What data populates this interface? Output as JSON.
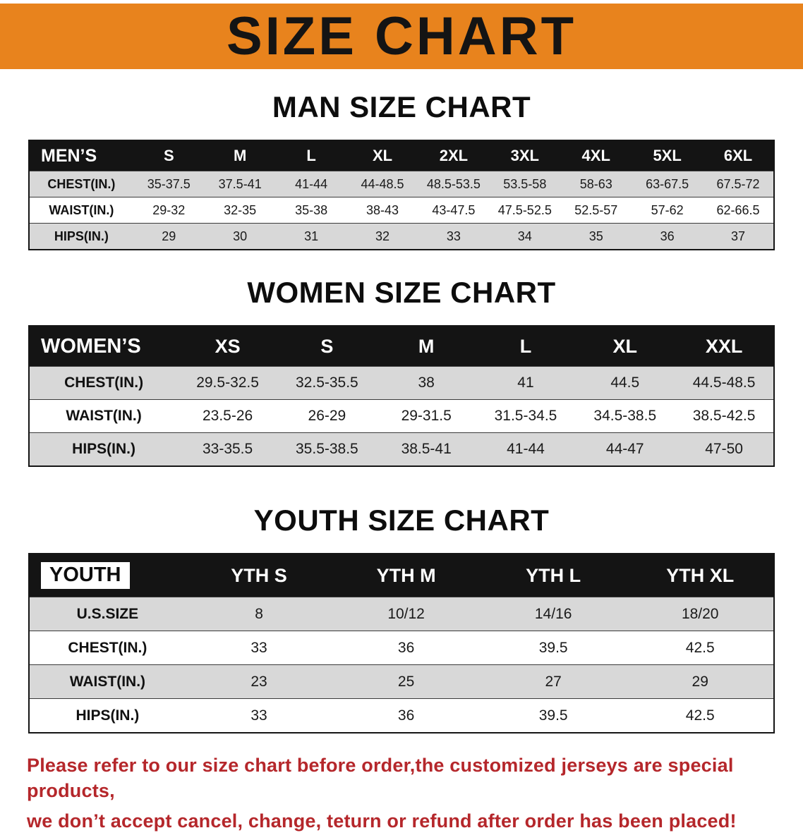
{
  "banner": {
    "title": "SIZE CHART"
  },
  "colors": {
    "banner_bg": "#e8831d",
    "table_header_bg": "#141414",
    "row_stripe": "#d8d8d8",
    "disclaimer_text": "#b5272b"
  },
  "sections": [
    {
      "heading": "MAN SIZE CHART",
      "table": {
        "header": [
          "MEN’S",
          "S",
          "M",
          "L",
          "XL",
          "2XL",
          "3XL",
          "4XL",
          "5XL",
          "6XL"
        ],
        "rows": [
          [
            "CHEST(IN.)",
            "35-37.5",
            "37.5-41",
            "41-44",
            "44-48.5",
            "48.5-53.5",
            "53.5-58",
            "58-63",
            "63-67.5",
            "67.5-72"
          ],
          [
            "WAIST(IN.)",
            "29-32",
            "32-35",
            "35-38",
            "38-43",
            "43-47.5",
            "47.5-52.5",
            "52.5-57",
            "57-62",
            "62-66.5"
          ],
          [
            "HIPS(IN.)",
            "29",
            "30",
            "31",
            "32",
            "33",
            "34",
            "35",
            "36",
            "37"
          ]
        ]
      }
    },
    {
      "heading": "WOMEN SIZE CHART",
      "table": {
        "header": [
          "WOMEN’S",
          "XS",
          "S",
          "M",
          "L",
          "XL",
          "XXL"
        ],
        "rows": [
          [
            "CHEST(IN.)",
            "29.5-32.5",
            "32.5-35.5",
            "38",
            "41",
            "44.5",
            "44.5-48.5"
          ],
          [
            "WAIST(IN.)",
            "23.5-26",
            "26-29",
            "29-31.5",
            "31.5-34.5",
            "34.5-38.5",
            "38.5-42.5"
          ],
          [
            "HIPS(IN.)",
            "33-35.5",
            "35.5-38.5",
            "38.5-41",
            "41-44",
            "44-47",
            "47-50"
          ]
        ]
      }
    },
    {
      "heading": "YOUTH SIZE CHART",
      "table": {
        "header": [
          "YOUTH",
          "YTH S",
          "YTH M",
          "YTH L",
          "YTH XL"
        ],
        "rows": [
          [
            "U.S.SIZE",
            "8",
            "10/12",
            "14/16",
            "18/20"
          ],
          [
            "CHEST(IN.)",
            "33",
            "36",
            "39.5",
            "42.5"
          ],
          [
            "WAIST(IN.)",
            "23",
            "25",
            "27",
            "29"
          ],
          [
            "HIPS(IN.)",
            "33",
            "36",
            "39.5",
            "42.5"
          ]
        ]
      }
    }
  ],
  "disclaimer": {
    "line1": "Please refer to our size chart before order,the customized jerseys are special products,",
    "line2": "we don’t accept cancel, change, teturn or refund after order has been placed!"
  }
}
